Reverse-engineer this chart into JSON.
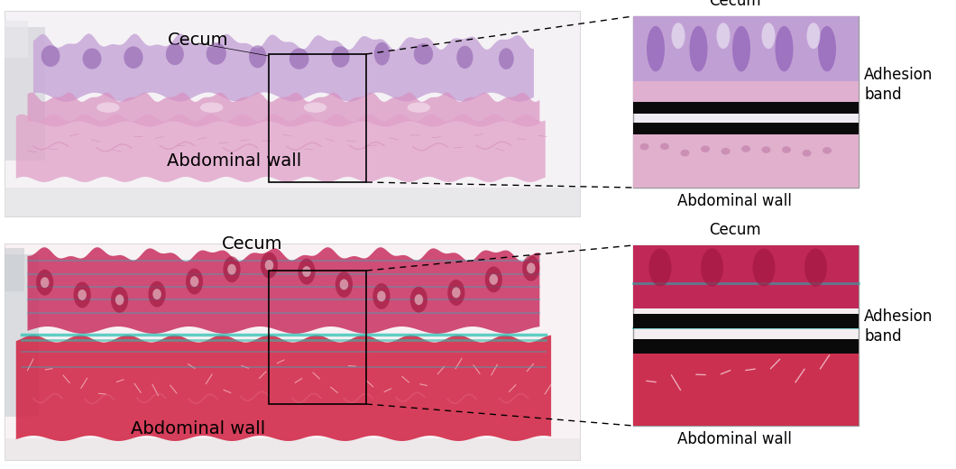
{
  "bg_color": "#ffffff",
  "top_main_bg": "#f0edf2",
  "top_main_tissue_upper_color": "#c8a0d8",
  "top_main_tissue_lower_color": "#e090c0",
  "top_inset_bg": "#f0e8f4",
  "bot_main_bg": "#f5f0f0",
  "bot_main_tissue_upper_color": "#d04870",
  "bot_main_tissue_lower_color": "#d02040",
  "bot_inset_bg": "#f0e0e8",
  "gray_stripe_color": "#d0d0d8",
  "band_color": "#111111",
  "top_panel": {
    "label_cecum": "Cecum",
    "label_abdominal": "Abdominal wall",
    "label_inset_cecum": "Cecum",
    "label_inset_adhesion": "Adhesion\nband",
    "label_inset_abdominal": "Abdominal wall"
  },
  "bottom_panel": {
    "label_cecum": "Cecum",
    "label_abdominal": "Abdominal wall",
    "label_inset_cecum": "Cecum",
    "label_inset_adhesion": "Adhesion\nband",
    "label_inset_abdominal": "Abdominal wall"
  },
  "font_size_label": 14,
  "font_size_small": 12
}
